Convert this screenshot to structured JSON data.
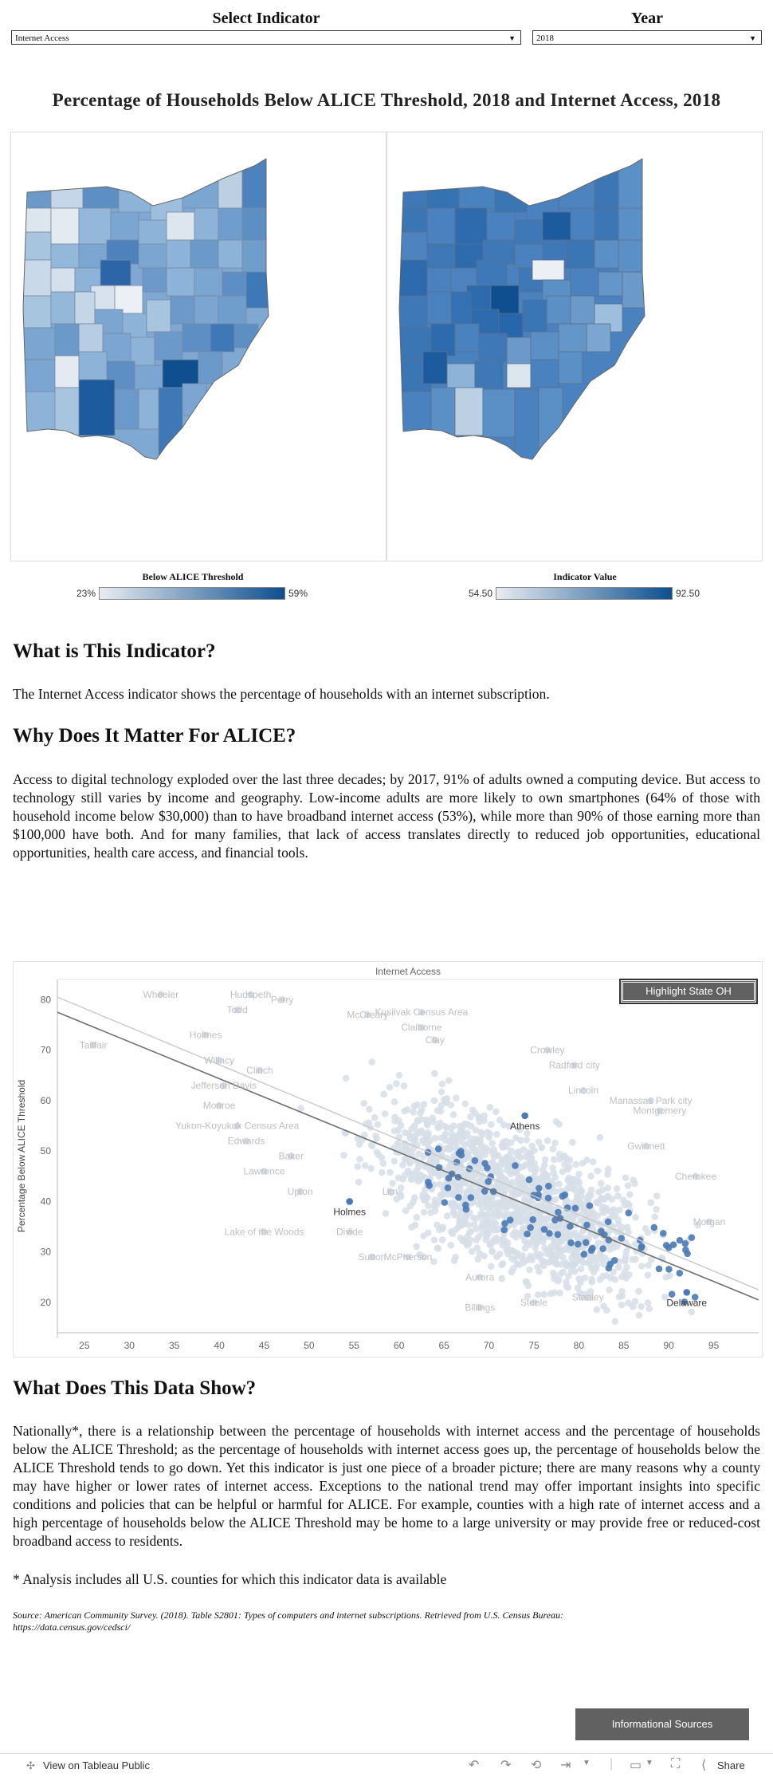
{
  "controls": {
    "indicator_label": "Select Indicator",
    "indicator_value": "Internet Access",
    "year_label": "Year",
    "year_value": "2018"
  },
  "title": "Percentage of Households Below ALICE Threshold, 2018 and Internet Access, 2018",
  "legend_left": {
    "title": "Below ALICE Threshold",
    "min": "23%",
    "max": "59%"
  },
  "legend_right": {
    "title": "Indicator Value",
    "min": "54.50",
    "max": "92.50"
  },
  "section1": {
    "heading": "What is This Indicator?",
    "text": "The Internet Access indicator shows the percentage of households with an internet subscription."
  },
  "section2": {
    "heading": "Why Does It Matter For ALICE?",
    "text": "Access to digital technology exploded over the last three decades; by 2017, 91% of adults owned a computing device. But access to technology still varies by income and geography. Low-income adults are more likely to own smartphones (64% of those with household income below $30,000) than to have broadband internet access (53%), while more than 90% of those earning more than $100,000 have both. And for many families, that lack of access translates directly to reduced job opportunities, educational opportunities, health care access, and financial tools."
  },
  "chart_data": {
    "type": "scatter",
    "title": "Internet Access",
    "xlabel": "",
    "ylabel": "Percentage Below ALICE Threshold",
    "xlim": [
      22,
      100
    ],
    "ylim": [
      14,
      84
    ],
    "xticks": [
      25,
      30,
      35,
      40,
      45,
      50,
      55,
      60,
      65,
      70,
      75,
      80,
      85,
      90,
      95
    ],
    "yticks": [
      20,
      30,
      40,
      50,
      60,
      70,
      80
    ],
    "grid": false,
    "highlight_button": "Highlight State OH",
    "trendlines": [
      {
        "x": [
          22,
          100
        ],
        "y": [
          77.5,
          20.5
        ]
      },
      {
        "x": [
          22,
          100
        ],
        "y": [
          80.5,
          22.5
        ]
      }
    ],
    "labeled_points": [
      {
        "label": "Wheeler",
        "x": 33.5,
        "y": 81
      },
      {
        "label": "Hudspeth",
        "x": 43.5,
        "y": 81
      },
      {
        "label": "Perry",
        "x": 47,
        "y": 80
      },
      {
        "label": "Todd",
        "x": 42,
        "y": 78
      },
      {
        "label": "McCreary",
        "x": 56.5,
        "y": 77
      },
      {
        "label": "Kusilvak Census Area",
        "x": 62.5,
        "y": 77.5
      },
      {
        "label": "Claiborne",
        "x": 62.5,
        "y": 74.5
      },
      {
        "label": "Clay",
        "x": 64,
        "y": 72
      },
      {
        "label": "Holmes",
        "x": 38.5,
        "y": 73
      },
      {
        "label": "Crowley",
        "x": 76.5,
        "y": 70
      },
      {
        "label": "Tallfair",
        "x": 26,
        "y": 71
      },
      {
        "label": "Radford city",
        "x": 79.5,
        "y": 67
      },
      {
        "label": "Willacy",
        "x": 40,
        "y": 68
      },
      {
        "label": "Clinch",
        "x": 44.5,
        "y": 66
      },
      {
        "label": "Jefferson Davis",
        "x": 40.5,
        "y": 63
      },
      {
        "label": "Lincoln",
        "x": 80.5,
        "y": 62
      },
      {
        "label": "Manassas Park city",
        "x": 88,
        "y": 60
      },
      {
        "label": "Monroe",
        "x": 40,
        "y": 59
      },
      {
        "label": "Montgomery",
        "x": 89,
        "y": 58
      },
      {
        "label": "Athens",
        "x": 74,
        "y": 57,
        "highlight": true
      },
      {
        "label": "Yukon-Koyukuk Census Area",
        "x": 42,
        "y": 55
      },
      {
        "label": "Edwards",
        "x": 43,
        "y": 52
      },
      {
        "label": "Gwinnett",
        "x": 87.5,
        "y": 51
      },
      {
        "label": "Baker",
        "x": 48,
        "y": 49
      },
      {
        "label": "Lawrence",
        "x": 45,
        "y": 46
      },
      {
        "label": "Cherokee",
        "x": 93,
        "y": 45
      },
      {
        "label": "Upton",
        "x": 49,
        "y": 42
      },
      {
        "label": "Lim",
        "x": 59,
        "y": 42
      },
      {
        "label": "Holmes",
        "x": 54.5,
        "y": 40,
        "highlight": true
      },
      {
        "label": "Morgan",
        "x": 94.5,
        "y": 36
      },
      {
        "label": "Lake of the Woods",
        "x": 45,
        "y": 34
      },
      {
        "label": "Divide",
        "x": 54.5,
        "y": 34
      },
      {
        "label": "Sutton",
        "x": 57,
        "y": 29
      },
      {
        "label": "McPherson",
        "x": 61,
        "y": 29
      },
      {
        "label": "Aurora",
        "x": 69,
        "y": 25
      },
      {
        "label": "Stanley",
        "x": 81,
        "y": 21
      },
      {
        "label": "Delaware",
        "x": 92,
        "y": 22,
        "highlight": true
      },
      {
        "label": "Billings",
        "x": 69,
        "y": 19
      },
      {
        "label": "Steele",
        "x": 75,
        "y": 20
      }
    ]
  },
  "section3": {
    "heading": "What Does This Data Show?",
    "text": "Nationally*, there is a relationship between the percentage of households with internet access and the percentage of households below the ALICE Threshold; as the percentage of households with internet access goes up, the percentage of households below the ALICE Threshold tends to go down. Yet this indicator is just one piece of a broader picture; there are many reasons why a county may have higher or lower rates of internet access. Exceptions to the national trend may offer important insights into specific conditions and policies that can be helpful or harmful for ALICE. For example, counties with a high rate of internet access and a high percentage of households below the ALICE Threshold may be home to a large university or may provide free or reduced-cost broadband access to residents.",
    "footnote": "* Analysis includes all U.S. counties for which this indicator data is available"
  },
  "source": "Source: American Community Survey. (2018). Table S2801: Types of computers and internet subscriptions. Retrieved from U.S. Census Bureau: https://data.census.gov/cedsci/",
  "info_button": "Informational Sources",
  "footer": {
    "tableau_link": "View on Tableau Public",
    "share": "Share"
  },
  "colors": {
    "low": "#e8ecf1",
    "high": "#0d4f8f",
    "cloud": "#d6dee8",
    "ohio": "#4a7ab5",
    "button": "#616161"
  }
}
